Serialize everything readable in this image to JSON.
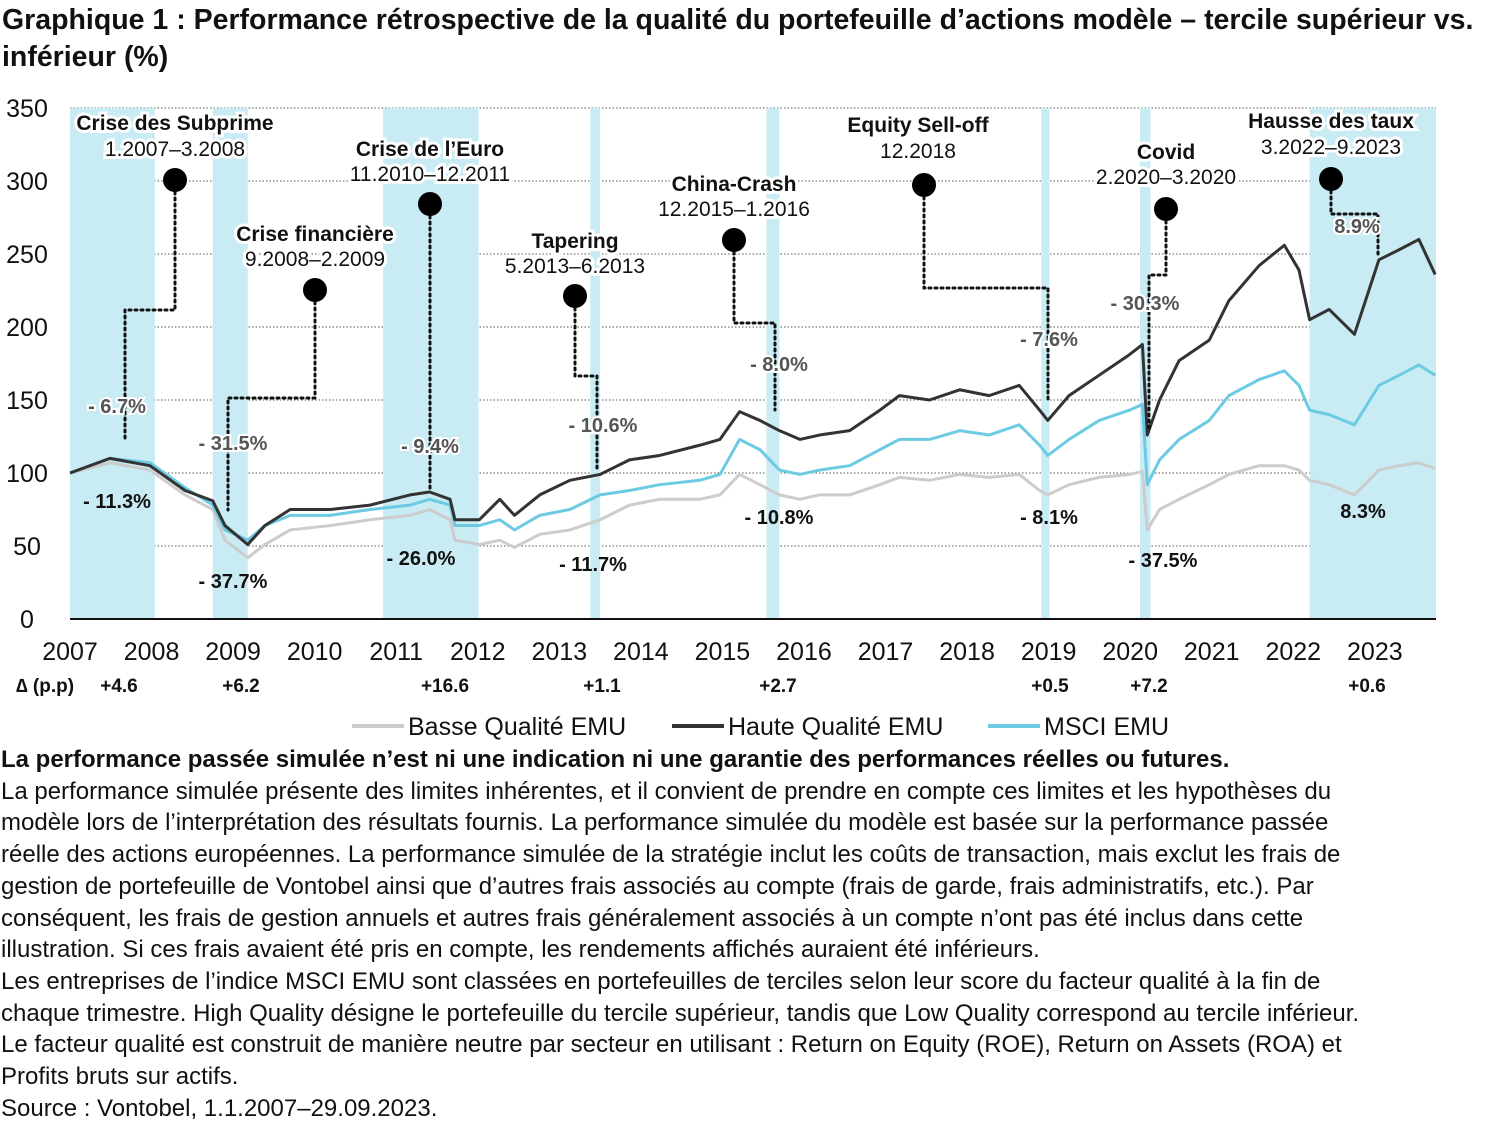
{
  "title": "Graphique 1 : Performance rétrospective de la qualité du portefeuille d’actions modèle – tercile supérieur vs. inférieur (%)",
  "chart_data": {
    "type": "line",
    "title": "Graphique 1 : Performance rétrospective de la qualité du portefeuille d’actions modèle – tercile supérieur vs. inférieur (%)",
    "xlim": [
      2007,
      2023.75
    ],
    "ylim": [
      0,
      350
    ],
    "yticks": [
      0,
      50,
      100,
      150,
      200,
      250,
      300,
      350
    ],
    "xticks": [
      "2007",
      "2008",
      "2009",
      "2010",
      "2011",
      "2012",
      "2013",
      "2014",
      "2015",
      "2016",
      "2017",
      "2018",
      "2019",
      "2020",
      "2021",
      "2022",
      "2023"
    ],
    "grid": "horizontal dotted",
    "legend_position": "bottom",
    "x": [
      2007.0,
      2007.49,
      2007.98,
      2008.41,
      2008.75,
      2008.9,
      2009.18,
      2009.39,
      2009.7,
      2010.19,
      2010.68,
      2011.17,
      2011.41,
      2011.66,
      2011.72,
      2012.02,
      2012.27,
      2012.45,
      2012.76,
      2013.13,
      2013.5,
      2013.86,
      2014.23,
      2014.72,
      2014.97,
      2015.21,
      2015.46,
      2015.7,
      2015.95,
      2016.19,
      2016.56,
      2016.93,
      2017.17,
      2017.54,
      2017.91,
      2018.27,
      2018.64,
      2018.89,
      2018.99,
      2019.25,
      2019.62,
      2019.99,
      2020.15,
      2020.21,
      2020.36,
      2020.6,
      2020.97,
      2021.21,
      2021.58,
      2021.89,
      2022.07,
      2022.2,
      2022.44,
      2022.75,
      2023.05,
      2023.3,
      2023.54,
      2023.74
    ],
    "series": [
      {
        "name": "Basse Qualité EMU",
        "color": "#cccccc",
        "values": [
          100,
          107,
          102,
          85,
          75,
          54,
          42,
          51,
          61,
          64,
          68,
          71,
          75,
          68,
          54,
          51,
          54,
          49,
          58,
          61,
          68,
          78,
          82,
          82,
          85,
          99,
          92,
          85,
          82,
          85,
          85,
          92,
          97,
          95,
          99,
          97,
          99,
          88,
          85,
          92,
          97,
          99,
          101,
          61,
          75,
          82,
          92,
          99,
          105,
          105,
          102,
          95,
          92,
          85,
          102,
          105,
          107,
          103
        ]
      },
      {
        "name": "Haute Qualité EMU",
        "color": "#333333",
        "values": [
          100,
          110,
          105,
          88,
          81,
          64,
          51,
          64,
          75,
          75,
          78,
          85,
          87,
          82,
          68,
          68,
          82,
          71,
          85,
          95,
          99,
          109,
          112,
          119,
          123,
          142,
          136,
          129,
          123,
          126,
          129,
          143,
          153,
          150,
          157,
          153,
          160,
          143,
          136,
          153,
          167,
          181,
          188,
          126,
          150,
          177,
          191,
          218,
          242,
          256,
          239,
          205,
          212,
          195,
          246,
          253,
          260,
          236
        ]
      },
      {
        "name": "MSCI EMU",
        "color": "#6ccbe3",
        "values": [
          100,
          110,
          107,
          90,
          78,
          61,
          54,
          64,
          71,
          71,
          75,
          78,
          82,
          78,
          64,
          64,
          68,
          61,
          71,
          75,
          85,
          88,
          92,
          95,
          99,
          123,
          116,
          102,
          99,
          102,
          105,
          116,
          123,
          123,
          129,
          126,
          133,
          119,
          112,
          123,
          136,
          143,
          147,
          92,
          109,
          123,
          136,
          153,
          164,
          170,
          160,
          143,
          140,
          133,
          160,
          167,
          174,
          167
        ]
      }
    ],
    "shaded_periods": [
      {
        "label": "Crise des Subprime",
        "dates": "1.2007–3.2008",
        "from": 2007.0,
        "to": 2008.04,
        "top_value": "- 6.7%",
        "bottom_value": "- 11.3%",
        "delta": "+4.6"
      },
      {
        "label": "Crise financière",
        "dates": "9.2008–2.2009",
        "from": 2008.75,
        "to": 2009.18,
        "top_value": "- 31.5%",
        "bottom_value": "- 37.7%",
        "delta": "+6.2"
      },
      {
        "label": "Crise de l’Euro",
        "dates": "11.2010–12.2011",
        "from": 2010.84,
        "to": 2012.01,
        "top_value": "- 9.4%",
        "bottom_value": "- 26.0%",
        "delta": "+16.6"
      },
      {
        "label": "Tapering",
        "dates": "5.2013–6.2013",
        "from": 2013.38,
        "to": 2013.5,
        "top_value": "- 10.6%",
        "bottom_value": "- 11.7%",
        "delta": "+1.1"
      },
      {
        "label": "China-Crash",
        "dates": "12.2015–1.2016",
        "from": 2015.54,
        "to": 2015.7,
        "top_value": "- 8.0%",
        "bottom_value": "- 10.8%",
        "delta": "+2.7"
      },
      {
        "label": "Equity Sell-off",
        "dates": "12.2018",
        "from": 2018.91,
        "to": 2019.01,
        "top_value": "- 7.6%",
        "bottom_value": "- 8.1%",
        "delta": "+0.5"
      },
      {
        "label": "Covid",
        "dates": "2.2020–3.2020",
        "from": 2020.12,
        "to": 2020.25,
        "top_value": "- 30.3%",
        "bottom_value": "- 37.5%",
        "delta": "+7.2"
      },
      {
        "label": "Hausse des taux",
        "dates": "3.2022–9.2023",
        "from": 2022.2,
        "to": 2023.75,
        "top_value": "8.9%",
        "bottom_value": "8.3%",
        "delta": "+0.6"
      }
    ],
    "delta_label": "∆ (p.p)",
    "band_color": "#c8ebf4"
  },
  "notes": {
    "disclaimer": "La performance passée simulée n’est ni une indication ni une garantie des performances réelles ou futures.",
    "lines": [
      "La performance simulée présente des limites inhérentes, et il convient de prendre en compte ces limites et les hypothèses du",
      "modèle lors de l’interprétation des résultats fournis. La performance simulée du modèle est basée sur la performance passée",
      "réelle des actions européennes. La performance simulée de la stratégie inclut les coûts de transaction, mais exclut les frais de",
      "gestion de portefeuille de Vontobel ainsi que d’autres frais associés au compte (frais de garde, frais administratifs, etc.). Par",
      "conséquent, les frais de gestion annuels et autres frais généralement associés à un compte n’ont pas été inclus dans cette",
      "illustration. Si ces frais avaient été pris en compte, les rendements affichés auraient été inférieurs.",
      "Les entreprises de l’indice MSCI EMU sont classées en portefeuilles de terciles selon leur score du facteur qualité à la fin de",
      "chaque trimestre. High Quality désigne le portefeuille du tercile supérieur, tandis que Low Quality correspond au tercile inférieur.",
      "Le facteur qualité est construit de manière neutre par secteur en utilisant : Return on Equity (ROE), Return on Assets (ROA) et",
      "Profits bruts sur actifs.",
      "Source : Vontobel, 1.1.2007–29.09.2023."
    ]
  }
}
